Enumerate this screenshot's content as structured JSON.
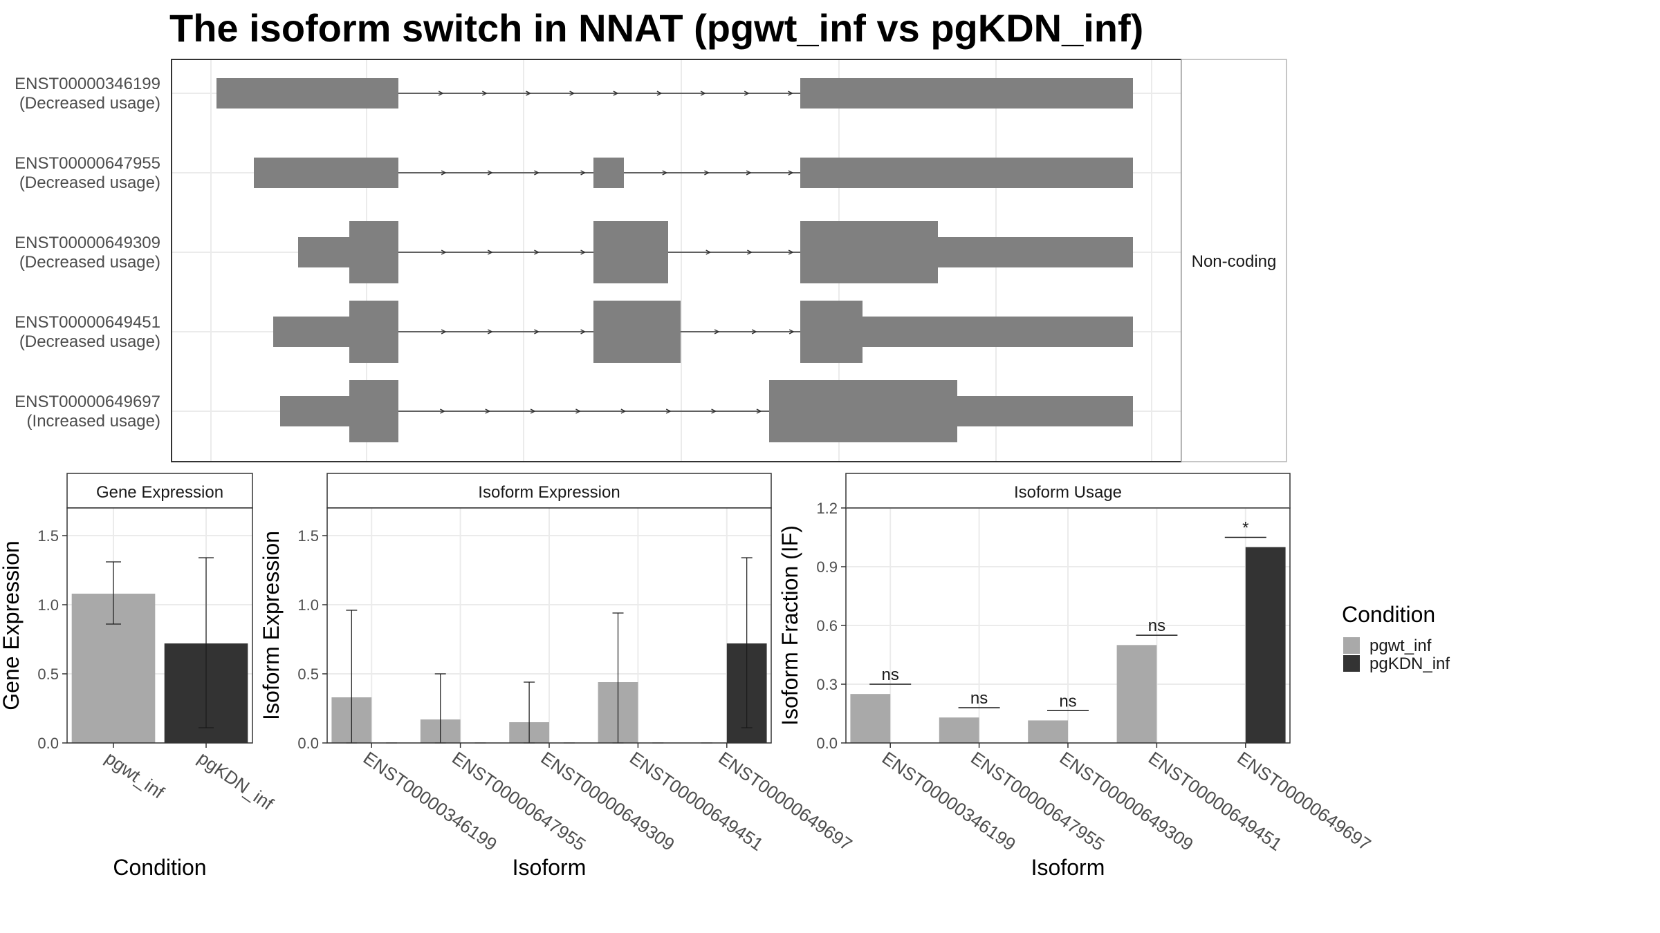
{
  "title": "The isoform switch in NNAT (pgwt_inf vs pgKDN_inf)",
  "colors": {
    "pgwt_inf": "#a9a9a9",
    "pgKDN_inf": "#333333",
    "exon": "#808080"
  },
  "chart_data": [
    {
      "type": "gene-structure",
      "panel_label": "Non-coding",
      "transcripts": [
        {
          "id": "ENST00000346199",
          "usage": "(Decreased usage)"
        },
        {
          "id": "ENST00000647955",
          "usage": "(Decreased usage)"
        },
        {
          "id": "ENST00000649309",
          "usage": "(Decreased usage)"
        },
        {
          "id": "ENST00000649451",
          "usage": "(Decreased usage)"
        },
        {
          "id": "ENST00000649697",
          "usage": "(Increased usage)"
        }
      ]
    },
    {
      "type": "bar",
      "strip": "Gene Expression",
      "xlabel": "Condition",
      "ylabel": "Gene Expression",
      "ylim": [
        0,
        1.7
      ],
      "yticks": [
        "0.0",
        "0.5",
        "1.0",
        "1.5"
      ],
      "categories": [
        "pgwt_inf",
        "pgKDN_inf"
      ],
      "values": [
        1.08,
        0.72
      ],
      "err_low": [
        0.86,
        0.11
      ],
      "err_high": [
        1.31,
        1.34
      ]
    },
    {
      "type": "bar",
      "strip": "Isoform Expression",
      "xlabel": "Isoform",
      "ylabel": "Isoform Expression",
      "ylim": [
        0,
        1.7
      ],
      "yticks": [
        "0.0",
        "0.5",
        "1.0",
        "1.5"
      ],
      "categories": [
        "ENST00000346199",
        "ENST00000647955",
        "ENST00000649309",
        "ENST00000649451",
        "ENST00000649697"
      ],
      "series": [
        {
          "name": "pgwt_inf",
          "values": [
            0.33,
            0.17,
            0.15,
            0.44,
            0.0
          ],
          "err_low": [
            0.0,
            0.0,
            0.0,
            0.0,
            0.0
          ],
          "err_high": [
            0.96,
            0.5,
            0.44,
            0.94,
            0.0
          ]
        },
        {
          "name": "pgKDN_inf",
          "values": [
            0.0,
            0.0,
            0.0,
            0.0,
            0.72
          ],
          "err_low": [
            0.0,
            0.0,
            0.0,
            0.0,
            0.11
          ],
          "err_high": [
            0.0,
            0.0,
            0.0,
            0.0,
            1.34
          ]
        }
      ]
    },
    {
      "type": "bar",
      "strip": "Isoform Usage",
      "xlabel": "Isoform",
      "ylabel": "Isoform Fraction (IF)",
      "ylim": [
        0,
        1.2
      ],
      "yticks": [
        "0.0",
        "0.3",
        "0.6",
        "0.9",
        "1.2"
      ],
      "categories": [
        "ENST00000346199",
        "ENST00000647955",
        "ENST00000649309",
        "ENST00000649451",
        "ENST00000649697"
      ],
      "series": [
        {
          "name": "pgwt_inf",
          "values": [
            0.25,
            0.13,
            0.115,
            0.5,
            0.0
          ]
        },
        {
          "name": "pgKDN_inf",
          "values": [
            0.0,
            0.0,
            0.0,
            0.0,
            1.0
          ]
        }
      ],
      "significance": [
        "ns",
        "ns",
        "ns",
        "ns",
        "*"
      ]
    }
  ],
  "legend": {
    "title": "Condition",
    "items": [
      "pgwt_inf",
      "pgKDN_inf"
    ]
  }
}
